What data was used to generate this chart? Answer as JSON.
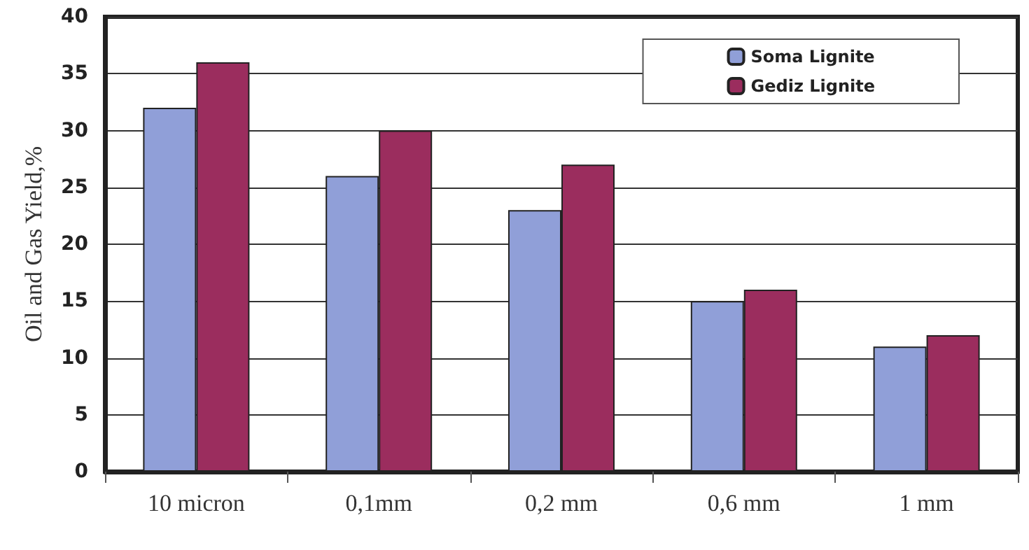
{
  "chart_data": {
    "type": "bar",
    "ylabel": "Oil and Gas Yield,%",
    "categories": [
      "10 micron",
      "0,1mm",
      "0,2 mm",
      "0,6 mm",
      "1 mm"
    ],
    "series": [
      {
        "name": "Soma Lignite",
        "color": "#909fd8",
        "values": [
          32,
          26,
          23,
          15,
          11
        ]
      },
      {
        "name": "Gediz Lignite",
        "color": "#9b2d5e",
        "values": [
          36,
          30,
          27,
          16,
          12
        ]
      }
    ],
    "ylim": [
      0,
      40
    ],
    "yticks": [
      0,
      5,
      10,
      15,
      20,
      25,
      30,
      35,
      40
    ],
    "grid": "y",
    "legend": "top right"
  }
}
